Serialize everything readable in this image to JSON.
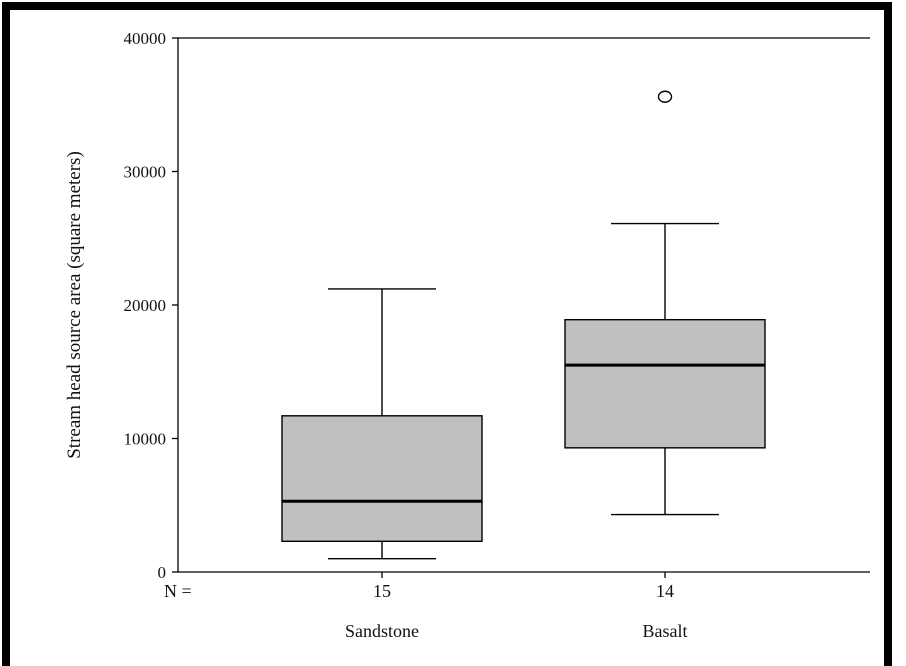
{
  "chart_data": {
    "type": "boxplot",
    "ylabel": "Stream head source area (square meters)",
    "ylim": [
      0,
      40000
    ],
    "yticks": [
      0,
      10000,
      20000,
      30000,
      40000
    ],
    "ytick_labels": [
      "0",
      "10000",
      "20000",
      "30000",
      "40000"
    ],
    "n_label": "N =",
    "categories": [
      {
        "name": "Sandstone",
        "n": "15",
        "whisker_low": 1000,
        "q1": 2300,
        "median": 5300,
        "q3": 11700,
        "whisker_high": 21200,
        "outliers": []
      },
      {
        "name": "Basalt",
        "n": "14",
        "whisker_low": 4300,
        "q1": 9300,
        "median": 15500,
        "q3": 18900,
        "whisker_high": 26100,
        "outliers": [
          35600
        ]
      }
    ],
    "box_fill": "#c0c0c0",
    "grid": false
  }
}
